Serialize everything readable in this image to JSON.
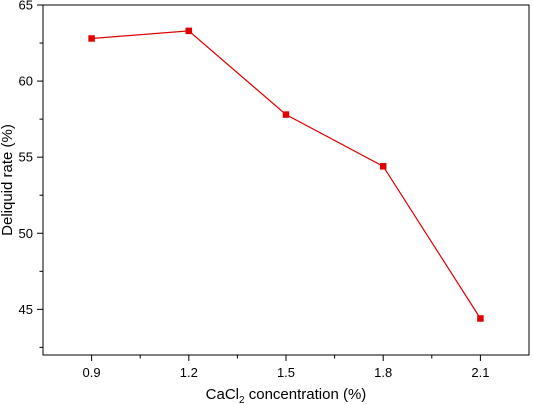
{
  "chart_data": {
    "type": "line",
    "x": [
      0.9,
      1.2,
      1.5,
      1.8,
      2.1
    ],
    "x_tick_labels": [
      "0.9",
      "1.2",
      "1.5",
      "1.8",
      "2.1"
    ],
    "series": [
      {
        "values": [
          62.8,
          63.3,
          57.8,
          54.4,
          44.4
        ],
        "color": "#e00000",
        "marker": "square"
      }
    ],
    "xlabel": {
      "main": "CaCl",
      "sub": "2",
      "rest": " concentration (%)"
    },
    "ylabel": "Deliquid rate (%)",
    "xlim": [
      0.75,
      2.25
    ],
    "ylim": [
      42,
      65
    ],
    "y_ticks": [
      45,
      50,
      55,
      60,
      65
    ],
    "y_tick_labels": [
      "45",
      "50",
      "55",
      "60",
      "65"
    ],
    "grid": false,
    "legend": "none"
  }
}
